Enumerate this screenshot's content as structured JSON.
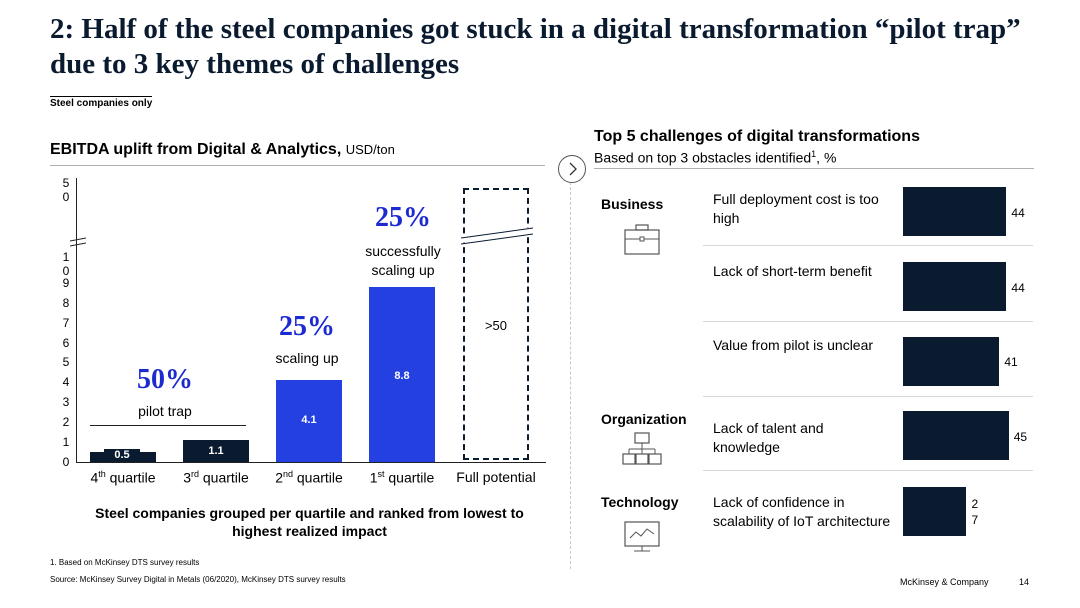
{
  "title": "2: Half of the steel companies got stuck in a digital transformation “pilot trap” due to 3 key themes of challenges",
  "subnote": "Steel companies only",
  "left_chart": {
    "title": "EBITDA uplift from Digital & Analytics,",
    "unit": "USD/ton",
    "axis_ticks": [
      "0",
      "1",
      "2",
      "3",
      "4",
      "5",
      "6",
      "7",
      "8",
      "9",
      "10",
      "50"
    ],
    "caption": "Steel companies grouped per quartile and ranked from lowest to highest realized impact"
  },
  "chart_data": {
    "type": "bar",
    "title": "EBITDA uplift from Digital & Analytics, USD/ton",
    "categories": [
      "4th quartile",
      "3rd quartile",
      "2nd quartile",
      "1st quartile",
      "Full potential"
    ],
    "values": [
      0.5,
      1.1,
      4.1,
      8.8,
      ">50"
    ],
    "ylabel": "USD/ton",
    "ylim": [
      0,
      50
    ],
    "axis_break": [
      10,
      50
    ],
    "groups": [
      {
        "share": "50%",
        "label": "pilot trap"
      },
      {
        "share": "25%",
        "label": "scaling up"
      },
      {
        "share": "25%",
        "label": "successfully scaling up"
      }
    ]
  },
  "quartiles": [
    {
      "ord": "4",
      "sup": "th",
      "word": "quartile",
      "value": "0.5"
    },
    {
      "ord": "3",
      "sup": "rd",
      "word": "quartile",
      "value": "1.1"
    },
    {
      "ord": "2",
      "sup": "nd",
      "word": "quartile",
      "value": "4.1"
    },
    {
      "ord": "1",
      "sup": "st",
      "word": "quartile",
      "value": "8.8"
    }
  ],
  "full_potential": {
    "label": "Full potential",
    "value": ">50"
  },
  "groups": {
    "pilot": {
      "pct": "50%",
      "label": "pilot trap"
    },
    "scaling": {
      "pct": "25%",
      "label": "scaling up"
    },
    "success": {
      "pct": "25%",
      "label1": "successfully",
      "label2": "scaling up"
    }
  },
  "right_panel": {
    "title": "Top 5 challenges of digital transformations",
    "subtitle_pre": "Based on top 3 obstacles identified",
    "subtitle_sup": "1",
    "subtitle_post": ", %",
    "categories": [
      "Business",
      "Organization",
      "Technology"
    ],
    "challenges": [
      {
        "text": "Full deployment cost is too high",
        "value": 44
      },
      {
        "text": "Lack of short-term benefit",
        "value": 44
      },
      {
        "text": "Value from pilot is unclear",
        "value": 41
      },
      {
        "text": "Lack of talent and knowledge",
        "value": 45
      },
      {
        "text": "Lack of confidence in scalability of IoT architecture",
        "value": 27
      }
    ]
  },
  "footnote": "1. Based on McKinsey DTS survey results",
  "source": "Source: McKinsey Survey Digital in Metals (06/2020), McKinsey DTS survey results",
  "brand": "McKinsey & Company",
  "page_number": "14"
}
